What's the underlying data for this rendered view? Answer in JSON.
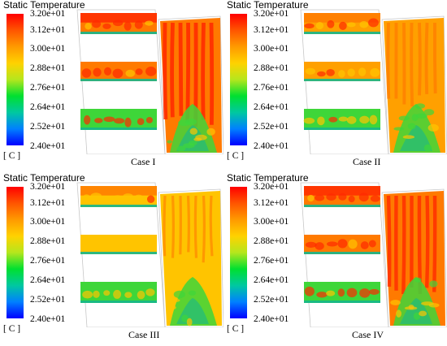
{
  "legend": {
    "title": "Static Temperature",
    "ticks": [
      "3.20e+01",
      "3.12e+01",
      "3.00e+01",
      "2.88e+01",
      "2.76e+01",
      "2.64e+01",
      "2.52e+01",
      "2.40e+01"
    ],
    "unit": "[ C ]",
    "colormap": [
      "#ff0000",
      "#ff5500",
      "#ff9a00",
      "#ffd200",
      "#b5e61d",
      "#00e030",
      "#00c8a0",
      "#0080ff",
      "#0000ff"
    ]
  },
  "panels": [
    {
      "case": "Case I",
      "hot": 0.9
    },
    {
      "case": "Case II",
      "hot": 0.45
    },
    {
      "case": "Case III",
      "hot": 0.1
    },
    {
      "case": "Case IV",
      "hot": 0.7
    }
  ],
  "colors": {
    "hot": "#ff2a00",
    "warm": "#ff7a00",
    "orange": "#ffa000",
    "yellowish": "#ffc400",
    "green": "#3ed63a",
    "teal": "#16b78c",
    "outline": "#c8c8c8"
  }
}
